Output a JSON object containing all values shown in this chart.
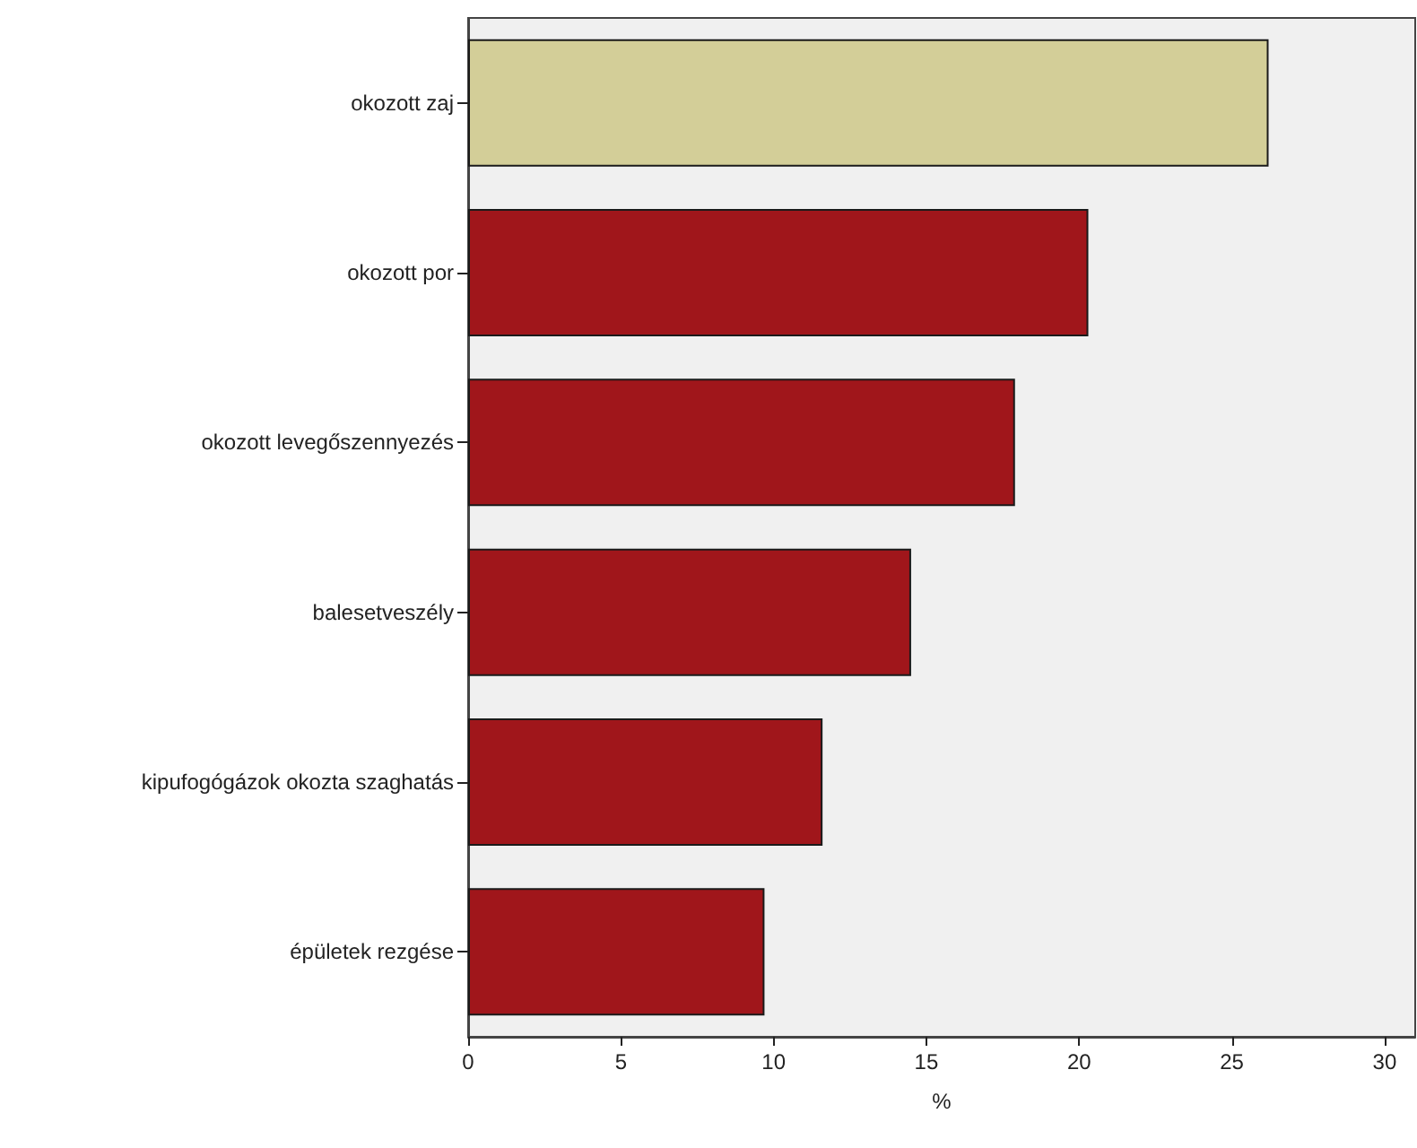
{
  "chart_data": {
    "type": "bar",
    "orientation": "horizontal",
    "xlabel": "%",
    "categories": [
      "okozott zaj",
      "okozott por",
      "okozott levegőszennyezés",
      "balesetveszély",
      "kipufogógázok okozta szaghatás",
      "épületek rezgése"
    ],
    "values": [
      26.2,
      20.3,
      17.9,
      14.5,
      11.6,
      9.7
    ],
    "colors": [
      "#d3ce98",
      "#a0161b",
      "#a0161b",
      "#a0161b",
      "#a0161b",
      "#a0161b"
    ],
    "xlim": [
      0,
      31
    ],
    "xticks": [
      0,
      5,
      10,
      15,
      20,
      25,
      30
    ],
    "grid": false
  }
}
